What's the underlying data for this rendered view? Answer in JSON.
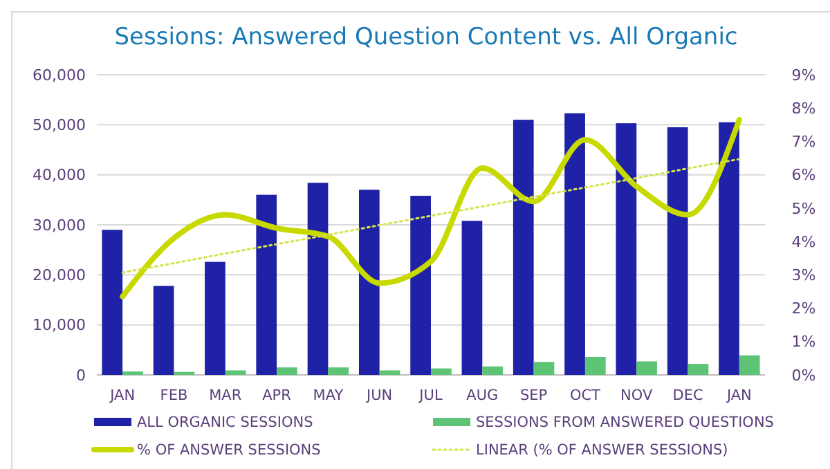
{
  "chart_data": {
    "type": "bar",
    "title": "Sessions: Answered Question Content vs. All Organic",
    "categories": [
      "JAN",
      "FEB",
      "MAR",
      "APR",
      "MAY",
      "JUN",
      "JUL",
      "AUG",
      "SEP",
      "OCT",
      "NOV",
      "DEC",
      "JAN"
    ],
    "series": [
      {
        "name": "ALL ORGANIC SESSIONS",
        "color": "#1f22a6",
        "values": [
          29000,
          17800,
          22600,
          36000,
          38400,
          37000,
          35800,
          30800,
          51000,
          52300,
          50300,
          49500,
          50500
        ]
      },
      {
        "name": "SESSIONS FROM ANSWERED QUESTIONS",
        "color": "#5cc474",
        "values": [
          700,
          600,
          900,
          1500,
          1500,
          900,
          1300,
          1700,
          2600,
          3600,
          2700,
          2200,
          3900
        ]
      },
      {
        "name": "% OF ANSWER SESSIONS",
        "type": "line",
        "axis": "y2",
        "color": "#c8d900",
        "values": [
          2.35,
          4.1,
          4.8,
          4.4,
          4.15,
          2.75,
          3.4,
          6.2,
          5.2,
          7.05,
          5.65,
          4.8,
          7.65
        ]
      },
      {
        "name": "LINEAR (% OF ANSWER SESSIONS)",
        "type": "line",
        "axis": "y2",
        "color": "#d6e34a",
        "line_style": "dotted",
        "values": [
          3.07,
          3.35,
          3.64,
          3.92,
          4.2,
          4.49,
          4.77,
          5.05,
          5.34,
          5.62,
          5.9,
          6.19,
          6.47
        ]
      }
    ],
    "ylim": [
      0,
      60000
    ],
    "yticks": [
      {
        "value": 0,
        "label": "0"
      },
      {
        "value": 10000,
        "label": "10,000"
      },
      {
        "value": 20000,
        "label": "20,000"
      },
      {
        "value": 30000,
        "label": "30,000"
      },
      {
        "value": 40000,
        "label": "40,000"
      },
      {
        "value": 50000,
        "label": "50,000"
      },
      {
        "value": 60000,
        "label": "60,000"
      }
    ],
    "y2lim": [
      0,
      9
    ],
    "y2ticks": [
      {
        "value": 0,
        "label": "0%"
      },
      {
        "value": 1,
        "label": "1%"
      },
      {
        "value": 2,
        "label": "2%"
      },
      {
        "value": 3,
        "label": "3%"
      },
      {
        "value": 4,
        "label": "4%"
      },
      {
        "value": 5,
        "label": "5%"
      },
      {
        "value": 6,
        "label": "6%"
      },
      {
        "value": 7,
        "label": "7%"
      },
      {
        "value": 8,
        "label": "8%"
      },
      {
        "value": 9,
        "label": "9%"
      }
    ],
    "grid": "y",
    "legend": "bottom"
  }
}
